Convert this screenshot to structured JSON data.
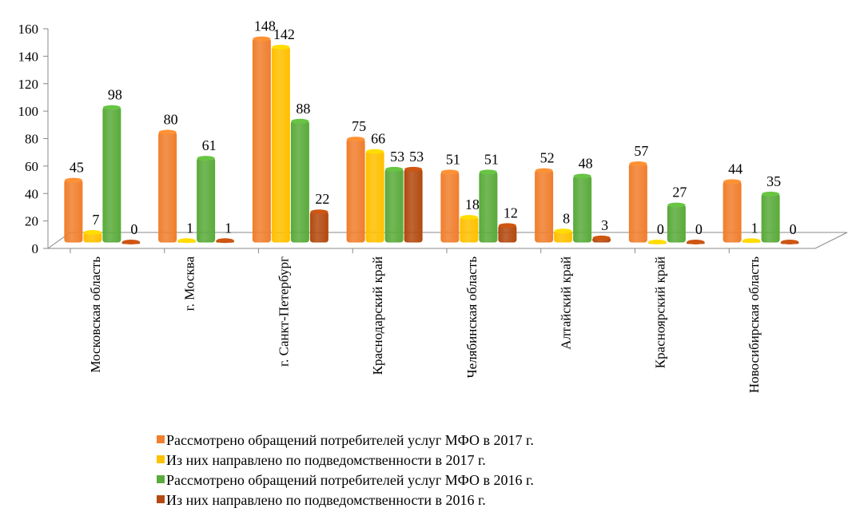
{
  "chart_data": {
    "type": "bar",
    "categories": [
      "Московская область",
      "г. Москва",
      "г. Санкт-Петербург",
      "Краснодарский край",
      "Челябинская область",
      "Алтайский край",
      "Красноярский край",
      "Новосибирская область"
    ],
    "series": [
      {
        "name": "Рассмотрено обращений потребителей услуг МФО в 2017 г.",
        "color": "#f07f2e",
        "values": [
          45,
          80,
          148,
          75,
          51,
          52,
          57,
          44
        ]
      },
      {
        "name": "Из них направлено по подведомственности в 2017 г.",
        "color": "#ffc000",
        "values": [
          7,
          1,
          142,
          66,
          18,
          8,
          0,
          1
        ]
      },
      {
        "name": "Рассмотрено обращений потребителей услуг МФО в 2016 г.",
        "color": "#5aab3b",
        "values": [
          98,
          61,
          88,
          53,
          51,
          48,
          27,
          35
        ]
      },
      {
        "name": "Из них направлено по подведомственности в 2016 г.",
        "color": "#b34a10",
        "values": [
          0,
          1,
          22,
          53,
          12,
          3,
          0,
          0
        ]
      }
    ],
    "ylim": [
      0,
      160
    ],
    "yticks": [
      0,
      20,
      40,
      60,
      80,
      100,
      120,
      140,
      160
    ],
    "legend": "bottom"
  }
}
